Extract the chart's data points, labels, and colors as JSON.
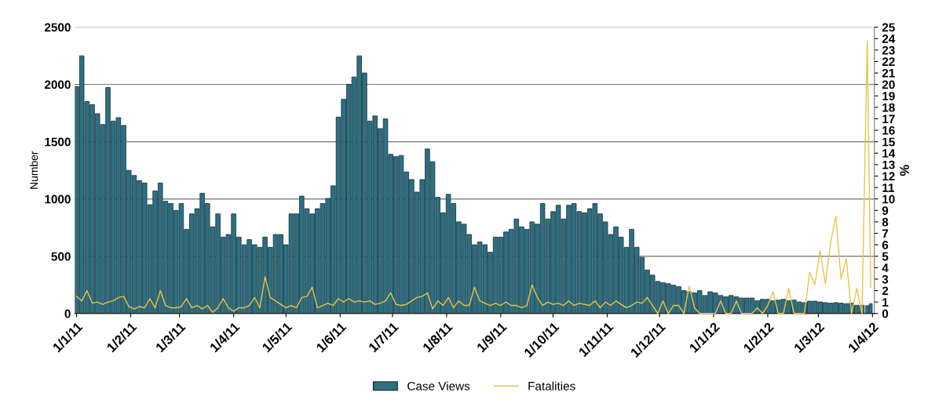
{
  "chart_data": {
    "type": "bar",
    "ylabel": "Number",
    "y2label": "%",
    "x": [
      "2011-01-01",
      "2011-01-04",
      "2011-01-07",
      "2011-01-10",
      "2011-01-13",
      "2011-01-16",
      "2011-01-19",
      "2011-01-22",
      "2011-01-25",
      "2011-01-28",
      "2011-01-31",
      "2011-02-03",
      "2011-02-06",
      "2011-02-09",
      "2011-02-12",
      "2011-02-15",
      "2011-02-18",
      "2011-02-21",
      "2011-02-24",
      "2011-02-27",
      "2011-03-02",
      "2011-03-05",
      "2011-03-08",
      "2011-03-11",
      "2011-03-14",
      "2011-03-17",
      "2011-03-20",
      "2011-03-23",
      "2011-03-26",
      "2011-03-29",
      "2011-04-01",
      "2011-04-04",
      "2011-04-07",
      "2011-04-10",
      "2011-04-13",
      "2011-04-16",
      "2011-04-19",
      "2011-04-22",
      "2011-04-25",
      "2011-04-28",
      "2011-05-01",
      "2011-05-04",
      "2011-05-07",
      "2011-05-10",
      "2011-05-13",
      "2011-05-16",
      "2011-05-19",
      "2011-05-22",
      "2011-05-25",
      "2011-05-28",
      "2011-05-31",
      "2011-06-03",
      "2011-06-06",
      "2011-06-09",
      "2011-06-12",
      "2011-06-15",
      "2011-06-18",
      "2011-06-21",
      "2011-06-24",
      "2011-06-27",
      "2011-06-30",
      "2011-07-03",
      "2011-07-06",
      "2011-07-09",
      "2011-07-12",
      "2011-07-15",
      "2011-07-18",
      "2011-07-21",
      "2011-07-24",
      "2011-07-27",
      "2011-07-30",
      "2011-08-02",
      "2011-08-05",
      "2011-08-08",
      "2011-08-11",
      "2011-08-14",
      "2011-08-17",
      "2011-08-20",
      "2011-08-23",
      "2011-08-26",
      "2011-08-29",
      "2011-09-01",
      "2011-09-04",
      "2011-09-07",
      "2011-09-10",
      "2011-09-13",
      "2011-09-16",
      "2011-09-19",
      "2011-09-22",
      "2011-09-25",
      "2011-09-28",
      "2011-10-01",
      "2011-10-04",
      "2011-10-07",
      "2011-10-10",
      "2011-10-13",
      "2011-10-16",
      "2011-10-19",
      "2011-10-22",
      "2011-10-25",
      "2011-10-28",
      "2011-10-31",
      "2011-11-03",
      "2011-11-06",
      "2011-11-09",
      "2011-11-12",
      "2011-11-15",
      "2011-11-18",
      "2011-11-21",
      "2011-11-24",
      "2011-11-27",
      "2011-11-30",
      "2011-12-03",
      "2011-12-06",
      "2011-12-09",
      "2011-12-12",
      "2011-12-15",
      "2011-12-18",
      "2011-12-21",
      "2011-12-24",
      "2011-12-27",
      "2011-12-30",
      "2012-01-02",
      "2012-01-05",
      "2012-01-08",
      "2012-01-11",
      "2012-01-14",
      "2012-01-17",
      "2012-01-20",
      "2012-01-23",
      "2012-01-26",
      "2012-01-29",
      "2012-02-01",
      "2012-02-04",
      "2012-02-07",
      "2012-02-10",
      "2012-02-13",
      "2012-02-16",
      "2012-02-19",
      "2012-02-22",
      "2012-02-25",
      "2012-02-28",
      "2012-03-02",
      "2012-03-05",
      "2012-03-08",
      "2012-03-11",
      "2012-03-14",
      "2012-03-17",
      "2012-03-20",
      "2012-03-23",
      "2012-03-26",
      "2012-03-29",
      "2012-03-31"
    ],
    "series": [
      {
        "name": "Case Views",
        "color": "#2e6f80",
        "values": [
          1980,
          2250,
          1850,
          1824,
          1745,
          1650,
          1973,
          1680,
          1710,
          1642,
          1250,
          1205,
          1160,
          1140,
          950,
          1070,
          1140,
          980,
          960,
          900,
          960,
          735,
          870,
          915,
          1050,
          960,
          757,
          870,
          667,
          690,
          870,
          667,
          600,
          645,
          600,
          578,
          667,
          578,
          690,
          690,
          600,
          870,
          870,
          1025,
          915,
          870,
          915,
          960,
          1005,
          1115,
          1715,
          1870,
          2000,
          2065,
          2250,
          2100,
          1680,
          1725,
          1615,
          1700,
          1390,
          1370,
          1380,
          1236,
          1170,
          1060,
          1170,
          1437,
          1325,
          1015,
          880,
          1040,
          960,
          800,
          780,
          690,
          600,
          625,
          600,
          535,
          667,
          667,
          712,
          735,
          825,
          757,
          735,
          800,
          780,
          960,
          825,
          890,
          945,
          825,
          945,
          960,
          890,
          880,
          915,
          960,
          870,
          800,
          690,
          757,
          667,
          578,
          735,
          578,
          490,
          380,
          335,
          280,
          270,
          260,
          247,
          235,
          200,
          190,
          180,
          200,
          157,
          190,
          180,
          157,
          146,
          157,
          146,
          135,
          135,
          135,
          112,
          124,
          124,
          112,
          117,
          124,
          112,
          117,
          101,
          95,
          108,
          108,
          101,
          95,
          90,
          95,
          90,
          86,
          90,
          72,
          72,
          68,
          86
        ]
      },
      {
        "name": "Fatalities",
        "type": "line",
        "axis": "y2",
        "color": "#e8c547",
        "values": [
          1.5,
          1.1,
          2.0,
          0.9,
          1.0,
          0.8,
          1.0,
          1.1,
          1.4,
          1.5,
          0.6,
          0.4,
          0.6,
          0.5,
          1.3,
          0.5,
          2.0,
          0.7,
          0.5,
          0.5,
          0.6,
          1.3,
          0.5,
          0.7,
          0.4,
          0.7,
          0.1,
          0.5,
          1.3,
          0.5,
          0.2,
          0.5,
          0.5,
          0.7,
          1.4,
          0.5,
          3.2,
          1.4,
          1.1,
          0.8,
          0.5,
          0.7,
          0.5,
          1.4,
          1.5,
          2.3,
          0.5,
          0.7,
          0.9,
          0.7,
          1.3,
          1.0,
          1.3,
          1.0,
          1.1,
          1.0,
          1.1,
          0.8,
          0.9,
          1.1,
          1.8,
          0.8,
          0.7,
          0.8,
          1.1,
          1.4,
          1.5,
          1.8,
          0.4,
          1.1,
          0.7,
          1.4,
          0.5,
          1.1,
          0.7,
          0.7,
          2.3,
          1.1,
          0.9,
          0.7,
          0.9,
          0.7,
          1.0,
          0.7,
          0.7,
          0.5,
          0.7,
          2.5,
          1.4,
          0.7,
          1.0,
          0.8,
          0.9,
          0.7,
          1.1,
          0.7,
          0.9,
          0.8,
          0.7,
          1.1,
          0.5,
          1.0,
          0.7,
          1.1,
          0.8,
          0.5,
          0.7,
          1.0,
          0.9,
          1.4,
          0.7,
          0,
          1.1,
          0,
          0.7,
          0.7,
          0,
          2.4,
          0.5,
          0,
          0,
          0,
          0,
          1.1,
          0,
          0,
          1.1,
          0,
          0,
          0,
          0.5,
          0,
          0.7,
          1.9,
          0,
          0,
          2.2,
          0,
          0,
          0,
          3.6,
          2.5,
          5.5,
          2.6,
          6.2,
          8.5,
          3.0,
          4.8,
          0,
          2.2,
          0,
          23.8,
          2.3
        ]
      }
    ],
    "xlim": [
      "2010-12-31",
      "2012-04-02"
    ],
    "xticks": [
      {
        "value": "2011-01-01",
        "label": "1/1/11"
      },
      {
        "value": "2011-02-01",
        "label": "1/2/11"
      },
      {
        "value": "2011-03-01",
        "label": "1/3/11"
      },
      {
        "value": "2011-04-01",
        "label": "1/4/11"
      },
      {
        "value": "2011-05-01",
        "label": "1/5/11"
      },
      {
        "value": "2011-06-01",
        "label": "1/6/11"
      },
      {
        "value": "2011-07-01",
        "label": "1/7/11"
      },
      {
        "value": "2011-08-01",
        "label": "1/8/11"
      },
      {
        "value": "2011-09-01",
        "label": "1/9/11"
      },
      {
        "value": "2011-10-01",
        "label": "1/10/11"
      },
      {
        "value": "2011-11-01",
        "label": "1/11/11"
      },
      {
        "value": "2011-12-01",
        "label": "1/12/11"
      },
      {
        "value": "2012-01-01",
        "label": "1/1/12"
      },
      {
        "value": "2012-02-01",
        "label": "1/2/12"
      },
      {
        "value": "2012-03-01",
        "label": "1/3/12"
      },
      {
        "value": "2012-04-01",
        "label": "1/4/12"
      }
    ],
    "ylim": [
      0,
      2500
    ],
    "yticks": [
      0,
      500,
      1000,
      1500,
      2000,
      2500
    ],
    "y2lim": [
      0,
      25
    ],
    "y2ticks": [
      0,
      1,
      2,
      3,
      4,
      5,
      6,
      7,
      8,
      9,
      10,
      11,
      12,
      13,
      14,
      15,
      16,
      17,
      18,
      19,
      20,
      21,
      22,
      23,
      24,
      25
    ],
    "grid": "y",
    "legend": "bottom"
  }
}
